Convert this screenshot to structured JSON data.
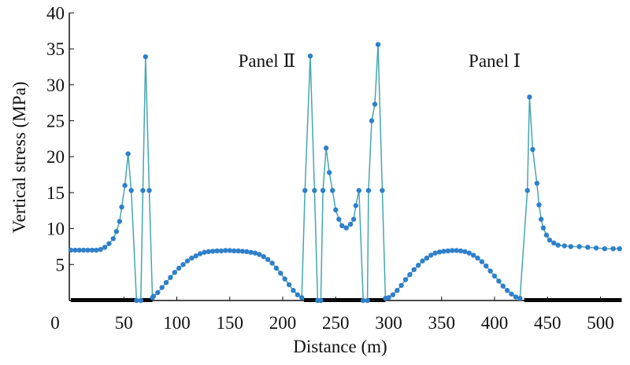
{
  "chart_data": {
    "type": "line",
    "title": "",
    "xlabel": "Distance (m)",
    "ylabel": "Vertical stress (MPa)",
    "xlim": [
      0,
      520
    ],
    "ylim": [
      0,
      40
    ],
    "xticks": [
      0,
      50,
      100,
      150,
      200,
      250,
      300,
      350,
      400,
      450,
      500
    ],
    "yticks": [
      5,
      10,
      15,
      20,
      25,
      30,
      35,
      40
    ],
    "x_tick_labels": [
      "0",
      "50",
      "100",
      "150",
      "200",
      "250",
      "300",
      "350",
      "400",
      "450",
      "500"
    ],
    "y_tick_labels": [
      "5",
      "10",
      "15",
      "20",
      "25",
      "30",
      "35",
      "40"
    ],
    "grid": false,
    "annotations": [
      {
        "text": "Panel Ⅱ",
        "x": 185,
        "y": 32.5
      },
      {
        "text": "Panel Ⅰ",
        "x": 400,
        "y": 32.5
      }
    ],
    "solid_segments": [
      [
        0,
        62
      ],
      [
        67,
        77
      ],
      [
        220,
        233
      ],
      [
        236,
        276
      ],
      [
        280,
        297
      ],
      [
        428,
        520
      ]
    ],
    "colors": {
      "line": "#45a6b0",
      "marker": "#2f80c9",
      "axis": "#111111",
      "segment": "#000000"
    },
    "series": [
      {
        "name": "Vertical stress",
        "points": [
          [
            0,
            7
          ],
          [
            4,
            7
          ],
          [
            8,
            7
          ],
          [
            12,
            7
          ],
          [
            16,
            7
          ],
          [
            20,
            7
          ],
          [
            24,
            7
          ],
          [
            28,
            7.1
          ],
          [
            32,
            7.4
          ],
          [
            36,
            7.9
          ],
          [
            40,
            8.6
          ],
          [
            43,
            9.6
          ],
          [
            46,
            11
          ],
          [
            48,
            13
          ],
          [
            51,
            16
          ],
          [
            54,
            20.4
          ],
          [
            57,
            15.3
          ],
          [
            62,
            0
          ],
          [
            66,
            0
          ],
          [
            68,
            15.3
          ],
          [
            70.5,
            33.9
          ],
          [
            74,
            15.3
          ],
          [
            77,
            0.4
          ],
          [
            78,
            0.6
          ],
          [
            82,
            1.1
          ],
          [
            86,
            1.8
          ],
          [
            90,
            2.5
          ],
          [
            94,
            3.2
          ],
          [
            98,
            3.9
          ],
          [
            102,
            4.5
          ],
          [
            106,
            5.0
          ],
          [
            110,
            5.5
          ],
          [
            114,
            5.9
          ],
          [
            118,
            6.2
          ],
          [
            122,
            6.5
          ],
          [
            126,
            6.7
          ],
          [
            130,
            6.8
          ],
          [
            134,
            6.85
          ],
          [
            138,
            6.9
          ],
          [
            142,
            6.9
          ],
          [
            146,
            6.95
          ],
          [
            150,
            6.95
          ],
          [
            154,
            6.9
          ],
          [
            158,
            6.9
          ],
          [
            162,
            6.85
          ],
          [
            166,
            6.8
          ],
          [
            170,
            6.7
          ],
          [
            174,
            6.6
          ],
          [
            178,
            6.4
          ],
          [
            182,
            6.1
          ],
          [
            186,
            5.7
          ],
          [
            190,
            5.2
          ],
          [
            194,
            4.5
          ],
          [
            198,
            3.8
          ],
          [
            202,
            3.0
          ],
          [
            206,
            2.2
          ],
          [
            210,
            1.4
          ],
          [
            214,
            0.8
          ],
          [
            218,
            0.4
          ],
          [
            221,
            15.3
          ],
          [
            226,
            34
          ],
          [
            230,
            15.3
          ],
          [
            233,
            0
          ],
          [
            236,
            0
          ],
          [
            238,
            15.3
          ],
          [
            241,
            21.2
          ],
          [
            244,
            17.8
          ],
          [
            247,
            15.3
          ],
          [
            250,
            12.6
          ],
          [
            253,
            11.3
          ],
          [
            256,
            10.4
          ],
          [
            260,
            10.1
          ],
          [
            264,
            10.6
          ],
          [
            267,
            11.3
          ],
          [
            269,
            13.2
          ],
          [
            272,
            15.3
          ],
          [
            276,
            0
          ],
          [
            280,
            0
          ],
          [
            281,
            15.3
          ],
          [
            284,
            25
          ],
          [
            287,
            27.3
          ],
          [
            290,
            35.6
          ],
          [
            294,
            15.3
          ],
          [
            297,
            0.3
          ],
          [
            300,
            0.4
          ],
          [
            304,
            0.8
          ],
          [
            308,
            1.4
          ],
          [
            312,
            2.1
          ],
          [
            316,
            2.9
          ],
          [
            320,
            3.6
          ],
          [
            324,
            4.3
          ],
          [
            328,
            4.9
          ],
          [
            332,
            5.5
          ],
          [
            336,
            5.9
          ],
          [
            340,
            6.3
          ],
          [
            344,
            6.6
          ],
          [
            348,
            6.75
          ],
          [
            352,
            6.85
          ],
          [
            356,
            6.9
          ],
          [
            360,
            6.95
          ],
          [
            364,
            6.95
          ],
          [
            368,
            6.9
          ],
          [
            372,
            6.8
          ],
          [
            376,
            6.6
          ],
          [
            380,
            6.3
          ],
          [
            384,
            5.9
          ],
          [
            388,
            5.4
          ],
          [
            392,
            4.8
          ],
          [
            396,
            4.1
          ],
          [
            400,
            3.4
          ],
          [
            404,
            2.7
          ],
          [
            408,
            2.0
          ],
          [
            412,
            1.4
          ],
          [
            416,
            0.9
          ],
          [
            420,
            0.5
          ],
          [
            424,
            0.3
          ],
          [
            431,
            15.3
          ],
          [
            433,
            28.3
          ],
          [
            436,
            21
          ],
          [
            440,
            16.3
          ],
          [
            442,
            13.3
          ],
          [
            444,
            11.3
          ],
          [
            446,
            10.1
          ],
          [
            449,
            9.1
          ],
          [
            452,
            8.4
          ],
          [
            456,
            8.0
          ],
          [
            460,
            7.7
          ],
          [
            466,
            7.6
          ],
          [
            472,
            7.5
          ],
          [
            480,
            7.5
          ],
          [
            488,
            7.4
          ],
          [
            496,
            7.3
          ],
          [
            504,
            7.2
          ],
          [
            512,
            7.2
          ],
          [
            518,
            7.2
          ]
        ]
      }
    ]
  }
}
